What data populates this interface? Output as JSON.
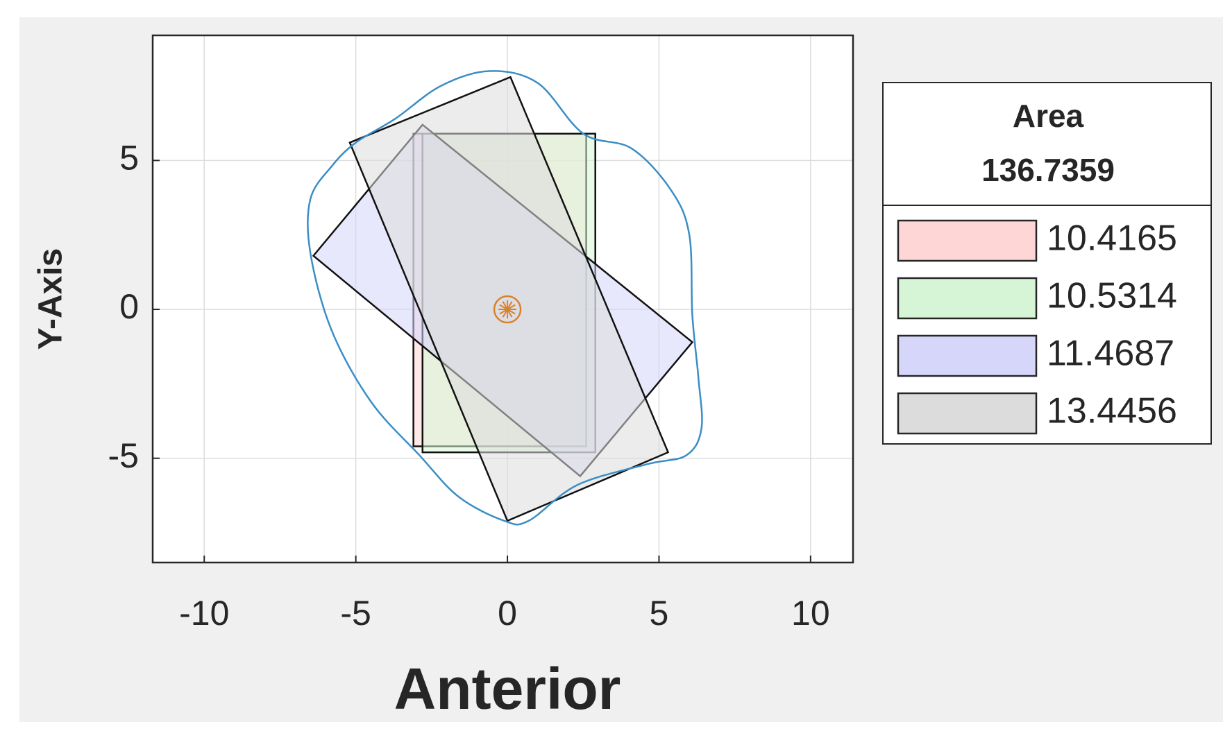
{
  "chart_data": {
    "type": "polygon",
    "xlabel": "Anterior",
    "ylabel": "Y-Axis",
    "xlim": [
      -11.7,
      11.4
    ],
    "ylim": [
      -8.5,
      9.2
    ],
    "xticks": [
      -10,
      -5,
      0,
      5,
      10
    ],
    "yticks": [
      -5,
      0,
      5
    ],
    "grid": true,
    "legend_title": [
      "Area",
      "136.7359"
    ],
    "series": [
      {
        "name": "10.4165",
        "color": "#ffd6d6",
        "x": [
          -3.1,
          2.6,
          2.6,
          -3.1
        ],
        "y": [
          5.9,
          5.9,
          -4.6,
          -4.6
        ]
      },
      {
        "name": "10.5314",
        "color": "#d6f5d6",
        "x": [
          -2.8,
          2.9,
          2.9,
          -2.8
        ],
        "y": [
          5.9,
          5.9,
          -4.8,
          -4.8
        ]
      },
      {
        "name": "11.4687",
        "color": "#d6d6fa",
        "x": [
          -6.4,
          -2.8,
          6.1,
          2.4
        ],
        "y": [
          1.8,
          6.2,
          -1.1,
          -5.6
        ]
      },
      {
        "name": "13.4456",
        "color": "#dcdcdc",
        "x": [
          -5.2,
          0.1,
          5.3,
          0.0
        ],
        "y": [
          5.6,
          7.8,
          -4.8,
          -7.1
        ]
      }
    ],
    "outline": {
      "color": "#3a8ec6",
      "x": [
        -0.6,
        1.0,
        2.5,
        4.1,
        5.4,
        6.0,
        6.1,
        6.3,
        6.4,
        5.9,
        4.6,
        2.3,
        0.7,
        -0.1,
        -1.6,
        -2.9,
        -4.5,
        -5.8,
        -6.5,
        -6.5,
        -5.8,
        -5.0,
        -3.7,
        -2.2
      ],
      "y": [
        8.0,
        7.6,
        5.9,
        5.4,
        4.0,
        2.5,
        -0.2,
        -2.3,
        -4.0,
        -4.9,
        -5.2,
        -5.9,
        -7.1,
        -7.1,
        -6.3,
        -4.9,
        -3.1,
        -0.7,
        1.9,
        3.7,
        4.8,
        5.6,
        6.4,
        7.5
      ]
    },
    "center": {
      "x": 0,
      "y": 0,
      "color": "#d9822b"
    }
  }
}
